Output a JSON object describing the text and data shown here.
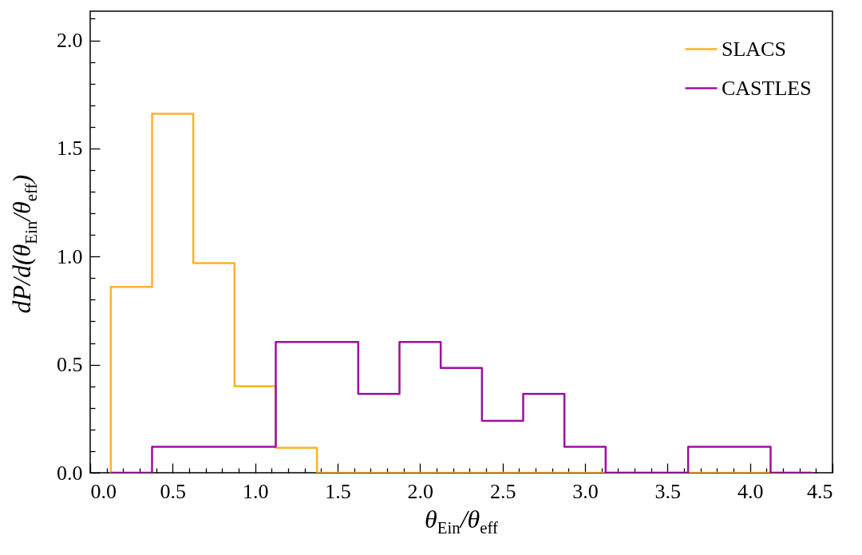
{
  "chart_data": {
    "type": "histogram",
    "xlabel": "θ$_{Ein}$/θ$_{eff}$",
    "ylabel": "dP/d(θ$_{Ein}$/θ$_{eff}$)",
    "bins": [
      0.125,
      0.375,
      0.625,
      0.875,
      1.125,
      1.375,
      1.625,
      1.875,
      2.125,
      2.375,
      2.625,
      2.875,
      3.125,
      3.375,
      3.625,
      3.875,
      4.125,
      4.375
    ],
    "series": [
      {
        "name": "SLACS",
        "color": "#ffb12a",
        "values": [
          0.86,
          1.66,
          0.97,
          0.4,
          0.115,
          0,
          0,
          0,
          0,
          0,
          0,
          0,
          0,
          0,
          0,
          0,
          0
        ]
      },
      {
        "name": "CASTLES",
        "color": "#9c0fa0",
        "values": [
          0,
          0.12,
          0.12,
          0.12,
          0.605,
          0.605,
          0.365,
          0.605,
          0.485,
          0.24,
          0.365,
          0.12,
          0,
          0,
          0.12,
          0.12,
          0
        ]
      }
    ],
    "xlim": [
      0,
      4.5
    ],
    "ylim": [
      0,
      2.135
    ],
    "xticks": [
      {
        "value": 0,
        "label": "0.0"
      },
      {
        "value": 0.1,
        "label": null
      },
      {
        "value": 0.2,
        "label": null
      },
      {
        "value": 0.3,
        "label": null
      },
      {
        "value": 0.4,
        "label": null
      },
      0.5,
      {
        "value": 0.6,
        "label": null
      },
      {
        "value": 0.7,
        "label": null
      },
      {
        "value": 0.8,
        "label": null
      },
      {
        "value": 0.9,
        "label": null
      },
      {
        "value": 1,
        "label": "1.0"
      },
      {
        "value": 1.1,
        "label": null
      },
      {
        "value": 1.2,
        "label": null
      },
      {
        "value": 1.3,
        "label": null
      },
      {
        "value": 1.4,
        "label": null
      },
      1.5,
      {
        "value": 1.6,
        "label": null
      },
      {
        "value": 1.7,
        "label": null
      },
      {
        "value": 1.8,
        "label": null
      },
      {
        "value": 1.9,
        "label": null
      },
      {
        "value": 2,
        "label": "2.0"
      },
      {
        "value": 2.1,
        "label": null
      },
      {
        "value": 2.2,
        "label": null
      },
      {
        "value": 2.3,
        "label": null
      },
      {
        "value": 2.4,
        "label": null
      },
      2.5,
      {
        "value": 2.6,
        "label": null
      },
      {
        "value": 2.7,
        "label": null
      },
      {
        "value": 2.8,
        "label": null
      },
      {
        "value": 2.9,
        "label": null
      },
      {
        "value": 3,
        "label": "3.0"
      },
      {
        "value": 3.1,
        "label": null
      },
      {
        "value": 3.2,
        "label": null
      },
      {
        "value": 3.3,
        "label": null
      },
      {
        "value": 3.4,
        "label": null
      },
      3.5,
      {
        "value": 3.6,
        "label": null
      },
      {
        "value": 3.7,
        "label": null
      },
      {
        "value": 3.8,
        "label": null
      },
      {
        "value": 3.9,
        "label": null
      },
      {
        "value": 4,
        "label": "4.0"
      },
      {
        "value": 4.1,
        "label": null
      },
      {
        "value": 4.2,
        "label": null
      },
      {
        "value": 4.3,
        "label": null
      },
      {
        "value": 4.4,
        "label": null
      },
      4.5
    ],
    "yticks": [
      {
        "value": 0,
        "label": "0.0"
      },
      {
        "value": 0.1,
        "label": null
      },
      {
        "value": 0.2,
        "label": null
      },
      {
        "value": 0.3,
        "label": null
      },
      {
        "value": 0.4,
        "label": null
      },
      0.5,
      {
        "value": 0.6,
        "label": null
      },
      {
        "value": 0.7,
        "label": null
      },
      {
        "value": 0.8,
        "label": null
      },
      {
        "value": 0.9,
        "label": null
      },
      {
        "value": 1,
        "label": "1.0"
      },
      {
        "value": 1.1,
        "label": null
      },
      {
        "value": 1.2,
        "label": null
      },
      {
        "value": 1.3,
        "label": null
      },
      {
        "value": 1.4,
        "label": null
      },
      1.5,
      {
        "value": 1.6,
        "label": null
      },
      {
        "value": 1.7,
        "label": null
      },
      {
        "value": 1.8,
        "label": null
      },
      {
        "value": 1.9,
        "label": null
      },
      {
        "value": 2,
        "label": "2.0"
      },
      {
        "value": 2.1,
        "label": null
      }
    ],
    "legend": "top right",
    "grid": false
  }
}
